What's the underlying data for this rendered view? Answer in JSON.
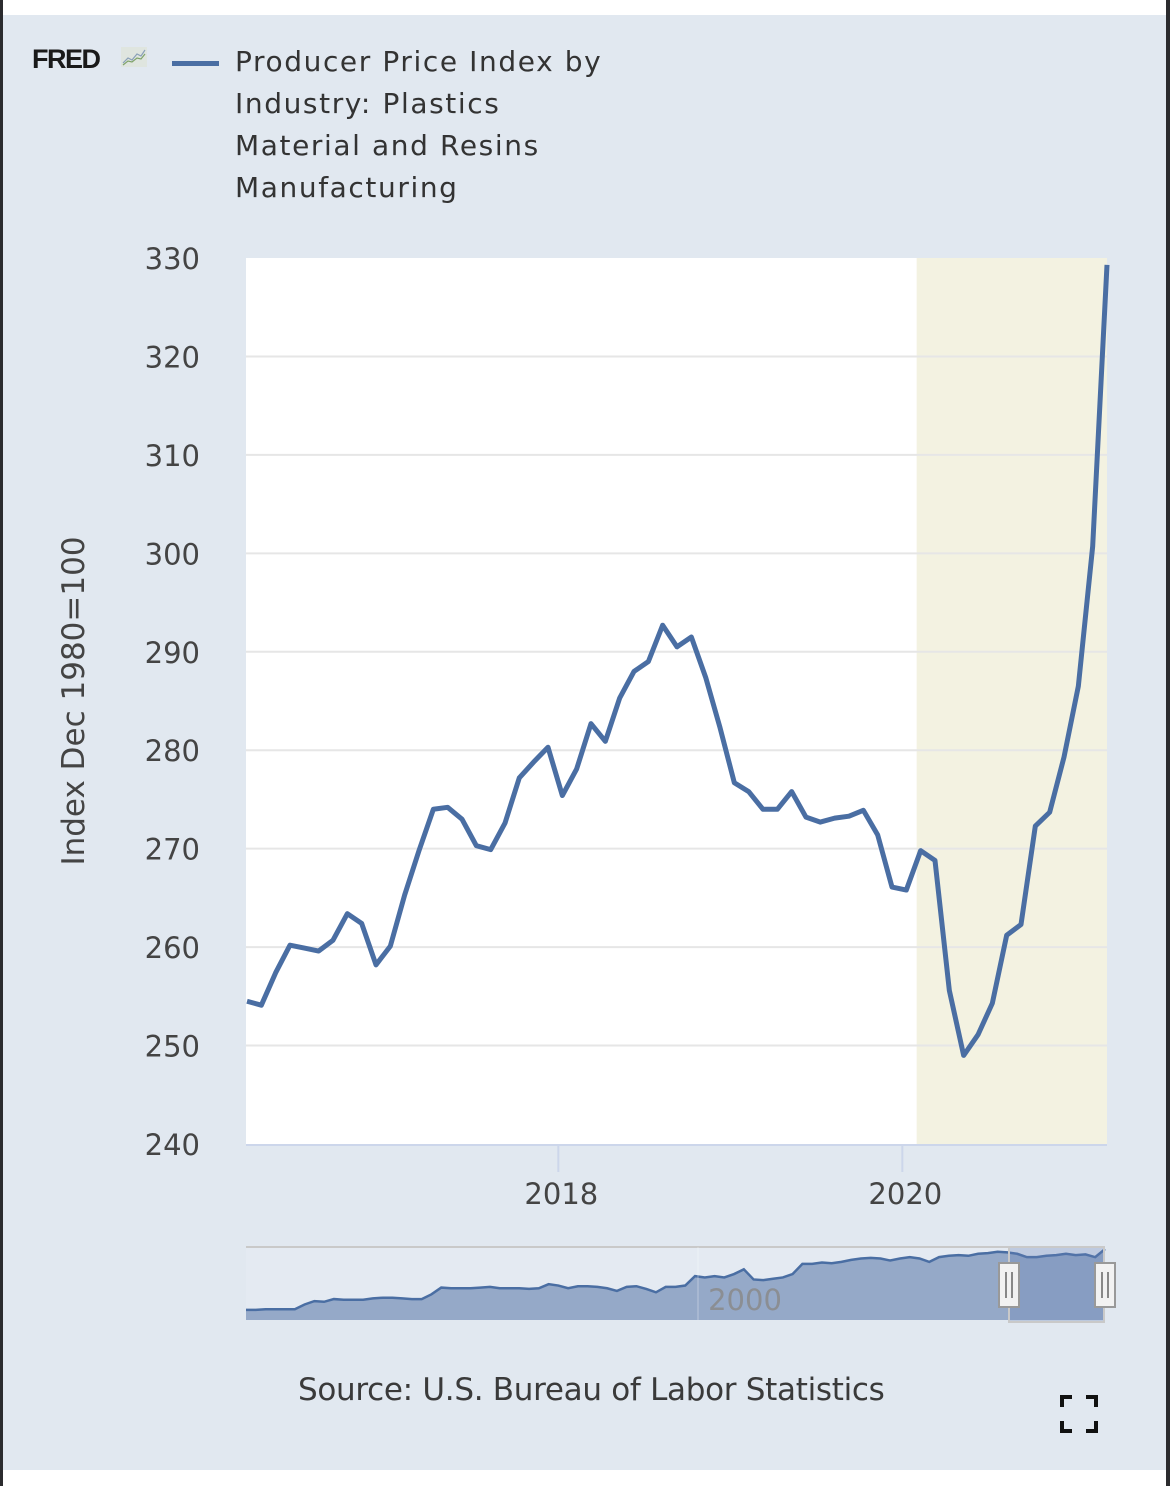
{
  "branding": {
    "logo_text": "FRED",
    "logo_icon": "chart-trend-icon"
  },
  "legend": {
    "series_name": "Producer Price Index by Industry: Plastics Material and Resins Manufacturing",
    "lines": [
      "Producer Price Index by",
      "Industry: Plastics",
      "Material and Resins",
      "Manufacturing"
    ],
    "color": "#4a6ea3"
  },
  "source_text": "Source: U.S. Bureau of Labor Statistics",
  "fullscreen_icon": "fullscreen-icon",
  "colors": {
    "line": "#4a6ea3",
    "recession_shading": "#f3f2e1",
    "plot_bg": "#ffffff",
    "panel_bg": "#e1e8f0",
    "gridline": "#e6e6e6",
    "navigator_fill": "#95a9c8",
    "navigator_selected": "#8aa0c6"
  },
  "chart_data": {
    "type": "line",
    "title": "Producer Price Index by Industry: Plastics Material and Resins Manufacturing",
    "xlabel": "",
    "ylabel": "Index Dec 1980=100",
    "ylim": [
      240,
      330
    ],
    "yticks": [
      240,
      250,
      260,
      270,
      280,
      290,
      300,
      310,
      320,
      330
    ],
    "xticks": [
      {
        "label": "2018",
        "date": "2018-01"
      },
      {
        "label": "2020",
        "date": "2020-01"
      }
    ],
    "xrange": [
      "2016-03",
      "2021-03"
    ],
    "grid": true,
    "legend_position": "top",
    "recessions": [
      {
        "start": "2020-02",
        "end": "2021-03"
      }
    ],
    "series": [
      {
        "name": "Producer Price Index by Industry: Plastics Material and Resins Manufacturing",
        "x": [
          "2016-03",
          "2016-04",
          "2016-05",
          "2016-06",
          "2016-07",
          "2016-08",
          "2016-09",
          "2016-10",
          "2016-11",
          "2016-12",
          "2017-01",
          "2017-02",
          "2017-03",
          "2017-04",
          "2017-05",
          "2017-06",
          "2017-07",
          "2017-08",
          "2017-09",
          "2017-10",
          "2017-11",
          "2017-12",
          "2018-01",
          "2018-02",
          "2018-03",
          "2018-04",
          "2018-05",
          "2018-06",
          "2018-07",
          "2018-08",
          "2018-09",
          "2018-10",
          "2018-11",
          "2018-12",
          "2019-01",
          "2019-02",
          "2019-03",
          "2019-04",
          "2019-05",
          "2019-06",
          "2019-07",
          "2019-08",
          "2019-09",
          "2019-10",
          "2019-11",
          "2019-12",
          "2020-01",
          "2020-02",
          "2020-03",
          "2020-04",
          "2020-05",
          "2020-06",
          "2020-07",
          "2020-08",
          "2020-09",
          "2020-10",
          "2020-11",
          "2020-12",
          "2021-01",
          "2021-02",
          "2021-03"
        ],
        "values": [
          254.5,
          254.1,
          257.4,
          260.2,
          259.9,
          259.6,
          260.7,
          263.4,
          262.4,
          258.2,
          260.1,
          265.3,
          269.8,
          274.0,
          274.2,
          273.0,
          270.3,
          269.9,
          272.6,
          277.2,
          278.8,
          280.3,
          275.4,
          278.1,
          282.7,
          280.9,
          285.3,
          288.0,
          289.0,
          292.7,
          290.5,
          291.5,
          287.4,
          282.3,
          276.7,
          275.8,
          274.0,
          274.0,
          275.8,
          273.2,
          272.7,
          273.1,
          273.3,
          273.9,
          271.4,
          266.1,
          265.8,
          269.8,
          268.8,
          255.6,
          249.0,
          251.1,
          254.3,
          261.2,
          262.3,
          272.3,
          273.7,
          279.3,
          286.5,
          300.7,
          329.3
        ]
      }
    ],
    "navigator": {
      "tick_labels": [
        "2000"
      ],
      "selected_range": [
        "2016-03",
        "2021-03"
      ],
      "overview_values": [
        72,
        72,
        73,
        73,
        73,
        73,
        80,
        85,
        84,
        88,
        87,
        87,
        87,
        89,
        90,
        90,
        89,
        88,
        88,
        95,
        105,
        104,
        104,
        104,
        105,
        106,
        104,
        104,
        104,
        103,
        104,
        110,
        108,
        104,
        107,
        107,
        106,
        104,
        100,
        106,
        107,
        103,
        98,
        106,
        106,
        108,
        122,
        120,
        122,
        120,
        125,
        132,
        117,
        116,
        118,
        120,
        125,
        140,
        140,
        142,
        141,
        143,
        146,
        148,
        149,
        148,
        145,
        148,
        150,
        148,
        143,
        150,
        152,
        153,
        152,
        155,
        156,
        158,
        157,
        155,
        150,
        150,
        152,
        153,
        155,
        153,
        154,
        150,
        162
      ]
    }
  }
}
